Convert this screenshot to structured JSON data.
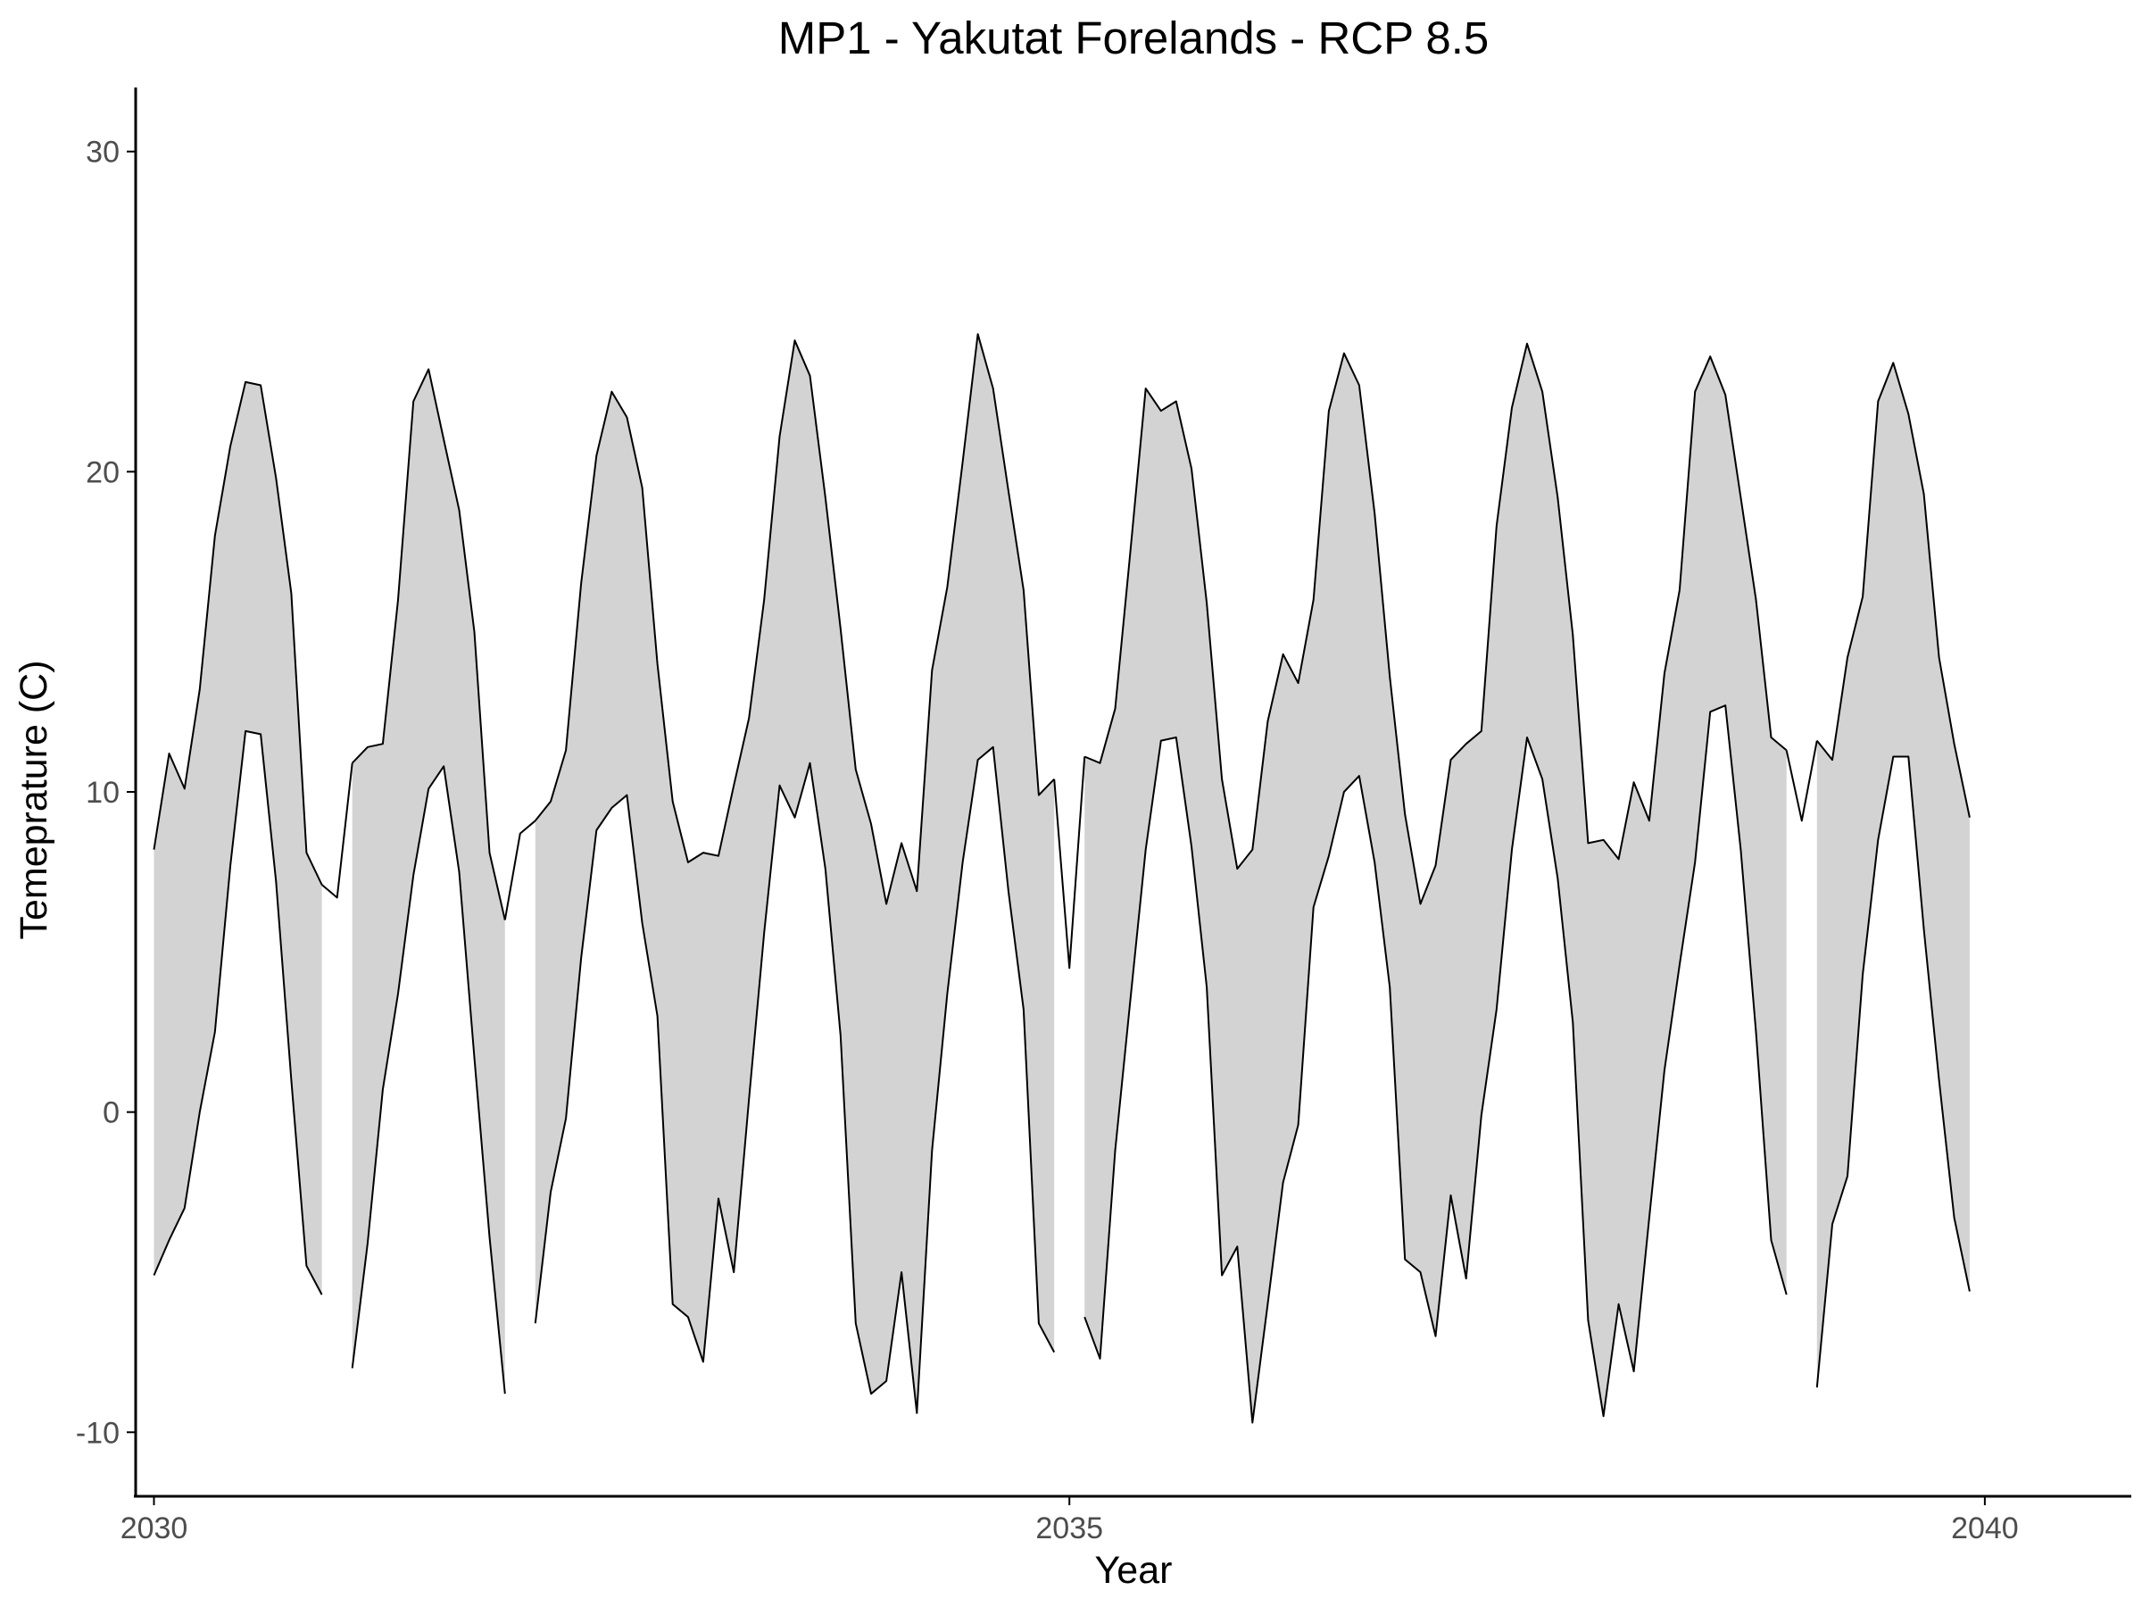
{
  "chart_data": {
    "type": "area",
    "title": "MP1 - Yakutat Forelands - RCP 8.5",
    "xlabel": "Year",
    "ylabel": "Temeprature (C)",
    "xlim": [
      2029.9,
      2040.8
    ],
    "ylim": [
      -12,
      32
    ],
    "x_ticks": [
      2030,
      2035,
      2040
    ],
    "y_ticks": [
      -10,
      0,
      10,
      20,
      30
    ],
    "x_tick_labels": [
      "2030",
      "2035",
      "2040"
    ],
    "y_tick_labels": [
      "-10",
      "0",
      "10",
      "20",
      "30"
    ],
    "grid": false,
    "legend": "none",
    "colors": {
      "band_fill": "#d3d3d3",
      "line": "#000000"
    },
    "series": [
      {
        "values": [
          [
            2030.0,
            -5.1,
            8.2
          ],
          [
            2030.083,
            -4.0,
            11.2
          ],
          [
            2030.167,
            -3.0,
            10.1
          ],
          [
            2030.25,
            0.0,
            13.2
          ],
          [
            2030.333,
            2.5,
            18.0
          ],
          [
            2030.417,
            7.7,
            20.8
          ],
          [
            2030.5,
            11.9,
            22.8
          ],
          [
            2030.583,
            11.8,
            22.7
          ],
          [
            2030.667,
            7.2,
            19.8
          ],
          [
            2030.75,
            1.0,
            16.2
          ],
          [
            2030.833,
            -4.8,
            8.1
          ],
          [
            2030.917,
            -5.7,
            7.1
          ]
        ]
      },
      {
        "values": [
          [
            2031.083,
            -8.0,
            10.9
          ],
          [
            2031.167,
            -4.1,
            11.4
          ],
          [
            2031.25,
            0.7,
            11.5
          ],
          [
            2031.333,
            3.7,
            16.0
          ],
          [
            2031.417,
            7.4,
            22.2
          ],
          [
            2031.5,
            10.1,
            23.2
          ],
          [
            2031.583,
            10.8,
            21.0
          ],
          [
            2031.667,
            7.5,
            18.8
          ],
          [
            2031.75,
            1.7,
            15.0
          ],
          [
            2031.833,
            -3.9,
            8.1
          ],
          [
            2031.917,
            -8.8,
            6.0
          ]
        ]
      },
      {
        "values": [
          [
            2032.083,
            -6.6,
            9.1
          ],
          [
            2032.167,
            -2.5,
            9.7
          ],
          [
            2032.25,
            -0.2,
            11.3
          ],
          [
            2032.333,
            4.8,
            16.5
          ],
          [
            2032.417,
            8.8,
            20.5
          ],
          [
            2032.5,
            9.5,
            22.5
          ],
          [
            2032.583,
            9.9,
            21.7
          ],
          [
            2032.667,
            5.9,
            19.5
          ],
          [
            2032.75,
            3.0,
            14.0
          ],
          [
            2032.833,
            -6.0,
            9.7
          ],
          [
            2032.917,
            -6.4,
            7.8
          ],
          [
            2033.0,
            -7.8,
            8.1
          ],
          [
            2033.083,
            -2.7,
            8.0
          ],
          [
            2033.167,
            -5.0,
            10.2
          ],
          [
            2033.25,
            0.4,
            12.3
          ],
          [
            2033.333,
            5.6,
            16.0
          ],
          [
            2033.417,
            10.2,
            21.1
          ],
          [
            2033.5,
            9.2,
            24.1
          ],
          [
            2033.583,
            10.9,
            23.0
          ],
          [
            2033.667,
            7.6,
            19.2
          ],
          [
            2033.75,
            2.4,
            15.1
          ],
          [
            2033.833,
            -6.6,
            10.7
          ],
          [
            2033.917,
            -8.8,
            9.0
          ],
          [
            2034.0,
            -8.4,
            6.5
          ],
          [
            2034.083,
            -5.0,
            8.4
          ],
          [
            2034.167,
            -9.4,
            6.9
          ],
          [
            2034.25,
            -1.2,
            13.8
          ],
          [
            2034.333,
            3.7,
            16.4
          ],
          [
            2034.417,
            7.8,
            20.3
          ],
          [
            2034.5,
            11.0,
            24.3
          ],
          [
            2034.583,
            11.4,
            22.6
          ],
          [
            2034.667,
            6.9,
            19.4
          ],
          [
            2034.75,
            3.2,
            16.3
          ],
          [
            2034.833,
            -6.6,
            9.9
          ],
          [
            2034.917,
            -7.5,
            10.4
          ]
        ]
      },
      {
        "values": [
          [
            2035.083,
            -6.4,
            11.1
          ],
          [
            2035.167,
            -7.7,
            10.9
          ],
          [
            2035.25,
            -1.2,
            12.6
          ],
          [
            2035.333,
            3.5,
            17.5
          ],
          [
            2035.417,
            8.2,
            22.6
          ],
          [
            2035.5,
            11.6,
            21.9
          ],
          [
            2035.583,
            11.7,
            22.2
          ],
          [
            2035.667,
            8.3,
            20.1
          ],
          [
            2035.75,
            3.9,
            15.9
          ],
          [
            2035.833,
            -5.1,
            10.4
          ],
          [
            2035.917,
            -4.2,
            7.6
          ],
          [
            2036.0,
            -9.7,
            8.2
          ],
          [
            2036.083,
            -6.0,
            12.2
          ],
          [
            2036.167,
            -2.2,
            14.3
          ],
          [
            2036.25,
            -0.4,
            13.4
          ],
          [
            2036.333,
            6.4,
            16.0
          ],
          [
            2036.417,
            8.0,
            21.9
          ],
          [
            2036.5,
            10.0,
            23.7
          ],
          [
            2036.583,
            10.5,
            22.7
          ],
          [
            2036.667,
            7.8,
            18.7
          ],
          [
            2036.75,
            3.9,
            13.6
          ],
          [
            2036.833,
            -4.6,
            9.3
          ],
          [
            2036.917,
            -5.0,
            6.5
          ],
          [
            2037.0,
            -7.0,
            7.7
          ],
          [
            2037.083,
            -2.6,
            11.0
          ],
          [
            2037.167,
            -5.2,
            11.5
          ],
          [
            2037.25,
            -0.1,
            11.9
          ],
          [
            2037.333,
            3.2,
            18.3
          ],
          [
            2037.417,
            8.2,
            22.0
          ],
          [
            2037.5,
            11.7,
            24.0
          ],
          [
            2037.583,
            10.4,
            22.5
          ],
          [
            2037.667,
            7.3,
            19.2
          ],
          [
            2037.75,
            2.8,
            14.9
          ],
          [
            2037.833,
            -6.5,
            8.4
          ],
          [
            2037.917,
            -9.5,
            8.5
          ],
          [
            2038.0,
            -6.0,
            7.9
          ],
          [
            2038.083,
            -8.1,
            10.3
          ],
          [
            2038.167,
            -3.3,
            9.1
          ],
          [
            2038.25,
            1.3,
            13.7
          ],
          [
            2038.333,
            4.6,
            16.3
          ],
          [
            2038.417,
            7.8,
            22.5
          ],
          [
            2038.5,
            12.5,
            23.6
          ],
          [
            2038.583,
            12.7,
            22.4
          ],
          [
            2038.667,
            8.2,
            19.2
          ],
          [
            2038.75,
            2.5,
            16.0
          ],
          [
            2038.833,
            -4.0,
            11.7
          ],
          [
            2038.917,
            -5.7,
            11.3
          ]
        ]
      },
      {
        "values": [
          [
            2039.083,
            -8.6,
            11.6
          ],
          [
            2039.167,
            -3.5,
            11.0
          ],
          [
            2039.25,
            -2.0,
            14.2
          ],
          [
            2039.333,
            4.3,
            16.1
          ],
          [
            2039.417,
            8.5,
            22.2
          ],
          [
            2039.5,
            11.1,
            23.4
          ],
          [
            2039.583,
            11.1,
            21.8
          ],
          [
            2039.667,
            5.7,
            19.3
          ],
          [
            2039.75,
            1.0,
            14.2
          ],
          [
            2039.833,
            -3.3,
            11.5
          ],
          [
            2039.917,
            -5.6,
            9.2
          ]
        ]
      }
    ],
    "single_points": [
      [
        2031.0,
        6.7
      ],
      [
        2032.0,
        8.7
      ],
      [
        2035.0,
        4.5
      ],
      [
        2039.0,
        9.1
      ]
    ]
  }
}
